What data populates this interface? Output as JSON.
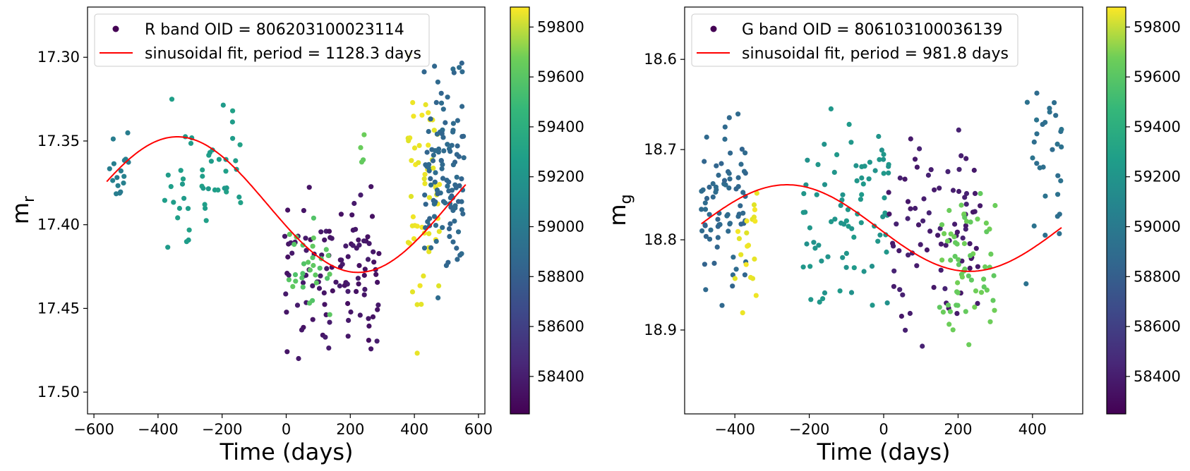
{
  "chart_data": [
    {
      "type": "scatter",
      "panel": "left",
      "xlabel": "Time (days)",
      "ylabel_base": "m",
      "ylabel_sub": "r",
      "xlim": [
        -620,
        620
      ],
      "ylim": [
        17.513,
        17.27
      ],
      "y_inverted": true,
      "xticks": [
        -600,
        -400,
        -200,
        0,
        200,
        400,
        600
      ],
      "xtick_labels": [
        "−600",
        "−400",
        "−200",
        "0",
        "200",
        "400",
        "600"
      ],
      "yticks": [
        17.3,
        17.35,
        17.4,
        17.45,
        17.5
      ],
      "ytick_labels": [
        "17.30",
        "17.35",
        "17.40",
        "17.45",
        "17.50"
      ],
      "legend": {
        "placement": "top-left",
        "scatter_label": "R band  OID = 806203100023114",
        "fit_label": "sinusoidal fit, period = 1128.3 days"
      },
      "fit": {
        "period_days": 1128.3,
        "mean": 17.388,
        "amplitude": 0.0405,
        "phase_peak_x": -340,
        "x_range": [
          -560,
          560
        ],
        "color": "#ff0000"
      },
      "colorbar": {
        "label_ticks": [
          58400,
          58600,
          58800,
          59000,
          59200,
          59400,
          59600,
          59800
        ],
        "tick_labels": [
          "58400",
          "58600",
          "58800",
          "59000",
          "59200",
          "59400",
          "59600",
          "59800"
        ],
        "vmin": 58250,
        "vmax": 59880
      },
      "clusters": [
        {
          "name": "early-blue",
          "color_value": 58950,
          "n": 16,
          "x": [
            -560,
            -480
          ],
          "y": [
            17.33,
            17.4
          ]
        },
        {
          "name": "teal-group-1",
          "color_value": 59150,
          "n": 48,
          "x": [
            -380,
            -140
          ],
          "y": [
            17.31,
            17.43
          ]
        },
        {
          "name": "purple-group-1",
          "color_value": 58350,
          "n": 110,
          "x": [
            -5,
            290
          ],
          "y": [
            17.36,
            17.5
          ]
        },
        {
          "name": "green-group-1",
          "color_value": 59450,
          "n": 30,
          "x": [
            0,
            140
          ],
          "y": [
            17.38,
            17.47
          ]
        },
        {
          "name": "green-outliers",
          "color_value": 59500,
          "n": 4,
          "x": [
            150,
            250
          ],
          "y": [
            17.31,
            17.4
          ]
        },
        {
          "name": "yellow-group-1",
          "color_value": 59830,
          "n": 55,
          "x": [
            380,
            480
          ],
          "y": [
            17.28,
            17.49
          ]
        },
        {
          "name": "blue-group-1",
          "color_value": 58800,
          "n": 120,
          "x": [
            430,
            555
          ],
          "y": [
            17.28,
            17.46
          ]
        }
      ]
    },
    {
      "type": "scatter",
      "panel": "right",
      "xlabel": "Time (days)",
      "ylabel_base": "m",
      "ylabel_sub": "g",
      "xlim": [
        -535,
        535
      ],
      "ylim": [
        18.993,
        18.542
      ],
      "y_inverted": true,
      "xticks": [
        -400,
        -200,
        0,
        200,
        400
      ],
      "xtick_labels": [
        "−400",
        "−200",
        "0",
        "200",
        "400"
      ],
      "yticks": [
        18.6,
        18.7,
        18.8,
        18.9
      ],
      "ytick_labels": [
        "18.6",
        "18.7",
        "18.8",
        "18.9"
      ],
      "legend": {
        "placement": "top-left",
        "scatter_label": "G band  OID = 806103100036139",
        "fit_label": "sinusoidal fit, period = 981.8 days"
      },
      "fit": {
        "period_days": 981.8,
        "mean": 18.787,
        "amplitude": 0.048,
        "phase_peak_x": -260,
        "x_range": [
          -490,
          480
        ],
        "color": "#ff0000"
      },
      "colorbar": {
        "label_ticks": [
          58400,
          58600,
          58800,
          59000,
          59200,
          59400,
          59600,
          59800
        ],
        "tick_labels": [
          "58400",
          "58600",
          "58800",
          "59000",
          "59200",
          "59400",
          "59600",
          "59800"
        ],
        "vmin": 58250,
        "vmax": 59880
      },
      "clusters": [
        {
          "name": "blue-group-1",
          "color_value": 58800,
          "n": 75,
          "x": [
            -490,
            -370
          ],
          "y": [
            18.64,
            18.89
          ]
        },
        {
          "name": "yellow-group-1",
          "color_value": 59830,
          "n": 20,
          "x": [
            -400,
            -340
          ],
          "y": [
            18.64,
            18.96
          ]
        },
        {
          "name": "teal-group-1",
          "color_value": 59100,
          "n": 80,
          "x": [
            -220,
            20
          ],
          "y": [
            18.6,
            18.91
          ]
        },
        {
          "name": "purple-group-1",
          "color_value": 58380,
          "n": 80,
          "x": [
            0,
            260
          ],
          "y": [
            18.63,
            18.97
          ]
        },
        {
          "name": "green-group-1",
          "color_value": 59500,
          "n": 60,
          "x": [
            150,
            300
          ],
          "y": [
            18.72,
            18.93
          ]
        },
        {
          "name": "blue-group-2",
          "color_value": 58850,
          "n": 30,
          "x": [
            380,
            480
          ],
          "y": [
            18.55,
            18.88
          ]
        }
      ]
    }
  ]
}
